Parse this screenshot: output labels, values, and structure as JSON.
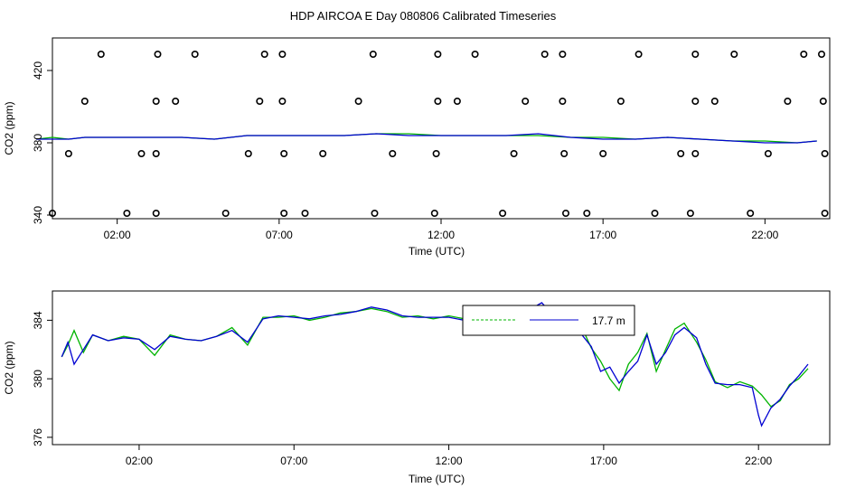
{
  "title": "HDP AIRCOA E  Day 080806  Calibrated Timeseries",
  "chart_data": [
    {
      "type": "scatter",
      "xlabel": "Time (UTC)",
      "ylabel": "CO2 (ppm)",
      "x_unit": "hours UTC",
      "xlim": [
        0,
        24
      ],
      "ylim": [
        338,
        438
      ],
      "x_ticks": [
        {
          "value": 2,
          "label": "02:00"
        },
        {
          "value": 7,
          "label": "07:00"
        },
        {
          "value": 12,
          "label": "12:00"
        },
        {
          "value": 17,
          "label": "17:00"
        },
        {
          "value": 22,
          "label": "22:00"
        }
      ],
      "y_ticks": [
        {
          "value": 340,
          "label": "340"
        },
        {
          "value": 380,
          "label": "380"
        },
        {
          "value": 420,
          "label": "420"
        }
      ],
      "markers": {
        "shape": "open-circle",
        "color": "#000000",
        "points": [
          [
            1.5,
            429
          ],
          [
            3.25,
            429
          ],
          [
            4.4,
            429
          ],
          [
            6.55,
            429
          ],
          [
            7.1,
            429
          ],
          [
            9.9,
            429
          ],
          [
            11.9,
            429
          ],
          [
            13.05,
            429
          ],
          [
            15.2,
            429
          ],
          [
            15.75,
            429
          ],
          [
            18.1,
            429
          ],
          [
            19.85,
            429
          ],
          [
            21.05,
            429
          ],
          [
            23.2,
            429
          ],
          [
            23.75,
            429
          ],
          [
            1.0,
            403
          ],
          [
            3.2,
            403
          ],
          [
            3.8,
            403
          ],
          [
            6.4,
            403
          ],
          [
            7.1,
            403
          ],
          [
            9.45,
            403
          ],
          [
            11.9,
            403
          ],
          [
            12.5,
            403
          ],
          [
            14.6,
            403
          ],
          [
            15.75,
            403
          ],
          [
            17.55,
            403
          ],
          [
            19.85,
            403
          ],
          [
            20.45,
            403
          ],
          [
            22.7,
            403
          ],
          [
            23.8,
            403
          ],
          [
            0.5,
            374
          ],
          [
            2.75,
            374
          ],
          [
            3.2,
            374
          ],
          [
            6.05,
            374
          ],
          [
            7.15,
            374
          ],
          [
            8.35,
            374
          ],
          [
            10.5,
            374
          ],
          [
            11.85,
            374
          ],
          [
            14.25,
            374
          ],
          [
            15.8,
            374
          ],
          [
            17.0,
            374
          ],
          [
            19.4,
            374
          ],
          [
            19.85,
            374
          ],
          [
            22.1,
            374
          ],
          [
            23.85,
            374
          ],
          [
            0.0,
            341
          ],
          [
            2.3,
            341
          ],
          [
            3.2,
            341
          ],
          [
            5.35,
            341
          ],
          [
            7.15,
            341
          ],
          [
            7.8,
            341
          ],
          [
            9.95,
            341
          ],
          [
            11.8,
            341
          ],
          [
            13.9,
            341
          ],
          [
            15.85,
            341
          ],
          [
            16.5,
            341
          ],
          [
            18.6,
            341
          ],
          [
            19.7,
            341
          ],
          [
            21.55,
            341
          ],
          [
            23.85,
            341
          ]
        ]
      },
      "series": [
        {
          "color": "#00b400",
          "x": [
            -0.5,
            0.0,
            0.5,
            1.0,
            1.5,
            2.0,
            3.0,
            4.0,
            5.0,
            6.0,
            7.0,
            8.0,
            9.0,
            10.0,
            11.0,
            12.0,
            13.0,
            14.0,
            15.0,
            16.0,
            17.0,
            18.0,
            19.0,
            20.0,
            21.0,
            22.0,
            23.0,
            23.6
          ],
          "y": [
            382,
            383,
            382,
            383,
            383,
            383,
            383,
            383,
            382,
            384,
            384,
            384,
            384,
            385,
            385,
            384,
            384,
            384,
            384,
            383,
            383,
            382,
            383,
            382,
            381,
            381,
            380,
            381
          ]
        },
        {
          "color": "#0000d2",
          "x": [
            -0.5,
            0.0,
            0.5,
            1.0,
            1.5,
            2.0,
            3.0,
            4.0,
            5.0,
            6.0,
            7.0,
            8.0,
            9.0,
            10.0,
            11.0,
            12.0,
            13.0,
            14.0,
            15.0,
            16.0,
            17.0,
            18.0,
            19.0,
            20.0,
            21.0,
            22.0,
            23.0,
            23.6
          ],
          "y": [
            382,
            382,
            382,
            383,
            383,
            383,
            383,
            383,
            382,
            384,
            384,
            384,
            384,
            385,
            384,
            384,
            384,
            384,
            385,
            383,
            382,
            382,
            383,
            382,
            381,
            380,
            380,
            381
          ]
        }
      ]
    },
    {
      "type": "line",
      "xlabel": "Time (UTC)",
      "ylabel": "CO2 (ppm)",
      "x_unit": "hours UTC",
      "xlim": [
        -0.8,
        24.3
      ],
      "ylim": [
        375.5,
        386.0
      ],
      "x_ticks": [
        {
          "value": 2,
          "label": "02:00"
        },
        {
          "value": 7,
          "label": "07:00"
        },
        {
          "value": 12,
          "label": "12:00"
        },
        {
          "value": 17,
          "label": "17:00"
        },
        {
          "value": 22,
          "label": "22:00"
        }
      ],
      "y_ticks": [
        {
          "value": 376,
          "label": "376"
        },
        {
          "value": 380,
          "label": "380"
        },
        {
          "value": 384,
          "label": "384"
        }
      ],
      "legend": {
        "position": "top-center",
        "text": "17.7 m"
      },
      "series": [
        {
          "color": "#00b400",
          "x": [
            -0.5,
            -0.3,
            -0.1,
            0.2,
            0.5,
            1.0,
            1.5,
            2.0,
            2.5,
            3.0,
            3.5,
            4.0,
            4.5,
            5.0,
            5.5,
            6.0,
            6.5,
            7.0,
            7.5,
            8.0,
            8.5,
            9.0,
            9.5,
            10.0,
            10.5,
            11.0,
            11.5,
            12.0,
            12.5,
            13.0,
            13.5,
            14.0,
            14.5,
            15.0,
            15.5,
            16.0,
            16.3,
            16.6,
            16.9,
            17.2,
            17.5,
            17.8,
            18.1,
            18.4,
            18.7,
            19.0,
            19.3,
            19.6,
            20.0,
            20.3,
            20.6,
            21.0,
            21.4,
            21.8,
            22.1,
            22.4,
            22.7,
            23.0,
            23.3,
            23.6
          ],
          "y": [
            381.5,
            382.3,
            383.3,
            381.8,
            383.0,
            382.6,
            382.9,
            382.7,
            381.6,
            383.0,
            382.7,
            382.6,
            382.9,
            383.5,
            382.3,
            384.2,
            384.2,
            384.3,
            384.0,
            384.2,
            384.5,
            384.6,
            384.8,
            384.6,
            384.2,
            384.3,
            384.1,
            384.3,
            384.1,
            384.2,
            384.1,
            384.0,
            384.7,
            385.0,
            384.6,
            384.0,
            383.5,
            382.1,
            381.2,
            380.0,
            379.2,
            381.0,
            381.8,
            383.1,
            380.5,
            382.0,
            383.4,
            383.8,
            382.5,
            381.3,
            379.8,
            379.4,
            379.8,
            379.5,
            378.9,
            378.1,
            378.5,
            379.6,
            380.0,
            380.7
          ]
        },
        {
          "color": "#0000d2",
          "x": [
            -0.5,
            -0.3,
            -0.1,
            0.2,
            0.5,
            1.0,
            1.5,
            2.0,
            2.5,
            3.0,
            3.5,
            4.0,
            4.5,
            5.0,
            5.5,
            6.0,
            6.5,
            7.0,
            7.5,
            8.0,
            8.5,
            9.0,
            9.5,
            10.0,
            10.5,
            11.0,
            11.5,
            12.0,
            12.5,
            13.0,
            13.5,
            14.0,
            14.5,
            15.0,
            15.5,
            16.0,
            16.3,
            16.6,
            16.9,
            17.2,
            17.5,
            17.8,
            18.1,
            18.4,
            18.7,
            19.0,
            19.3,
            19.6,
            20.0,
            20.3,
            20.6,
            21.0,
            21.4,
            21.8,
            22.0,
            22.1,
            22.4,
            22.7,
            23.0,
            23.3,
            23.6
          ],
          "y": [
            381.5,
            382.5,
            381.0,
            382.0,
            383.0,
            382.6,
            382.8,
            382.7,
            382.0,
            382.9,
            382.7,
            382.6,
            382.9,
            383.3,
            382.5,
            384.1,
            384.3,
            384.2,
            384.1,
            384.3,
            384.4,
            384.6,
            384.9,
            384.7,
            384.3,
            384.2,
            384.2,
            384.2,
            384.0,
            384.2,
            384.0,
            384.2,
            384.6,
            385.2,
            384.0,
            383.8,
            383.0,
            382.2,
            380.5,
            380.8,
            379.7,
            380.5,
            381.2,
            383.0,
            381.0,
            381.8,
            383.0,
            383.5,
            382.8,
            381.0,
            379.7,
            379.6,
            379.6,
            379.4,
            377.5,
            376.8,
            378.0,
            378.6,
            379.5,
            380.2,
            381.0
          ]
        }
      ]
    }
  ]
}
